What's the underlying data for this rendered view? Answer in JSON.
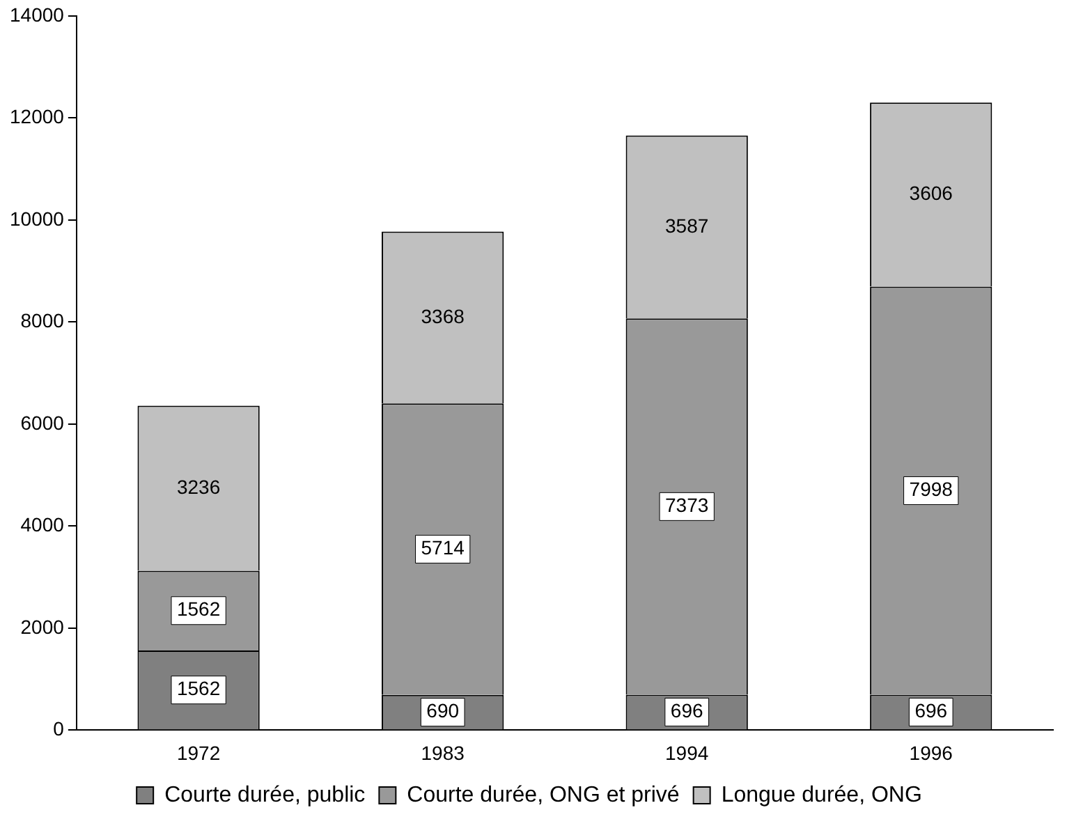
{
  "chart_data": {
    "type": "bar",
    "stacked": true,
    "categories": [
      "1972",
      "1983",
      "1994",
      "1996"
    ],
    "series": [
      {
        "name": "Courte durée, public",
        "color": "#808080",
        "values": [
          1562,
          690,
          696,
          696
        ]
      },
      {
        "name": "Courte durée, ONG et privé",
        "color": "#999999",
        "values": [
          1562,
          5714,
          7373,
          7998
        ]
      },
      {
        "name": "Longue durée, ONG",
        "color": "#c0c0c0",
        "values": [
          3236,
          3368,
          3587,
          3606
        ]
      }
    ],
    "ylim": [
      0,
      14000
    ],
    "yticks": [
      0,
      2000,
      4000,
      6000,
      8000,
      10000,
      12000,
      14000
    ],
    "grid": false,
    "legend": "bottom",
    "data_labels": true
  }
}
